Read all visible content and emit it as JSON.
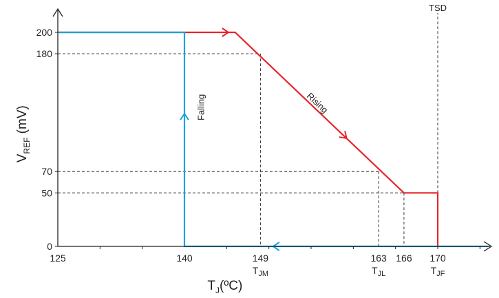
{
  "chart_data": {
    "type": "line",
    "xlabel": {
      "main": "T",
      "sub": "J",
      "suffix": "(ºC)"
    },
    "ylabel": {
      "main": "V",
      "sub": "REF",
      "suffix": " (mV)"
    },
    "xlim": [
      125,
      176
    ],
    "ylim": [
      0,
      218
    ],
    "grid": false,
    "x_ticks": [
      {
        "value": 125,
        "label": "125",
        "sub": ""
      },
      {
        "value": 140,
        "label": "140",
        "sub": ""
      },
      {
        "value": 149,
        "label": "149",
        "sub": "JM"
      },
      {
        "value": 163,
        "label": "163",
        "sub": "JL"
      },
      {
        "value": 166,
        "label": "166",
        "sub": ""
      },
      {
        "value": 170,
        "label": "170",
        "sub": "JF"
      }
    ],
    "x_sub_prefix": "T",
    "x_minor_ticks": [
      130,
      135,
      145,
      150,
      155,
      160,
      165,
      170,
      175
    ],
    "y_ticks": [
      {
        "value": 0,
        "label": "0"
      },
      {
        "value": 50,
        "label": "50"
      },
      {
        "value": 70,
        "label": "70"
      },
      {
        "value": 180,
        "label": "180"
      },
      {
        "value": 200,
        "label": "200"
      }
    ],
    "series": [
      {
        "name": "Rising",
        "color": "#e8232a",
        "points": [
          [
            125,
            200
          ],
          [
            146,
            200
          ],
          [
            166,
            50
          ],
          [
            170,
            50
          ],
          [
            170,
            0
          ]
        ]
      },
      {
        "name": "Falling",
        "color": "#1aa3dc",
        "points": [
          [
            176,
            0
          ],
          [
            140,
            0
          ],
          [
            140,
            200
          ],
          [
            125,
            200
          ]
        ]
      }
    ],
    "guides": [
      [
        [
          125,
          180
        ],
        [
          149,
          180
        ]
      ],
      [
        [
          149,
          180
        ],
        [
          149,
          0
        ]
      ],
      [
        [
          125,
          70
        ],
        [
          163,
          70
        ]
      ],
      [
        [
          163,
          70
        ],
        [
          163,
          0
        ]
      ],
      [
        [
          125,
          50
        ],
        [
          166,
          50
        ]
      ],
      [
        [
          166,
          50
        ],
        [
          166,
          0
        ]
      ],
      [
        [
          170,
          50
        ],
        [
          170,
          218
        ]
      ]
    ],
    "annotations": [
      {
        "text": "TSD",
        "x": 170,
        "y": 218
      },
      {
        "text": "Rising",
        "x": 155.5,
        "y": 132
      },
      {
        "text": "Falling",
        "x": 141.2,
        "y": 130
      }
    ]
  }
}
